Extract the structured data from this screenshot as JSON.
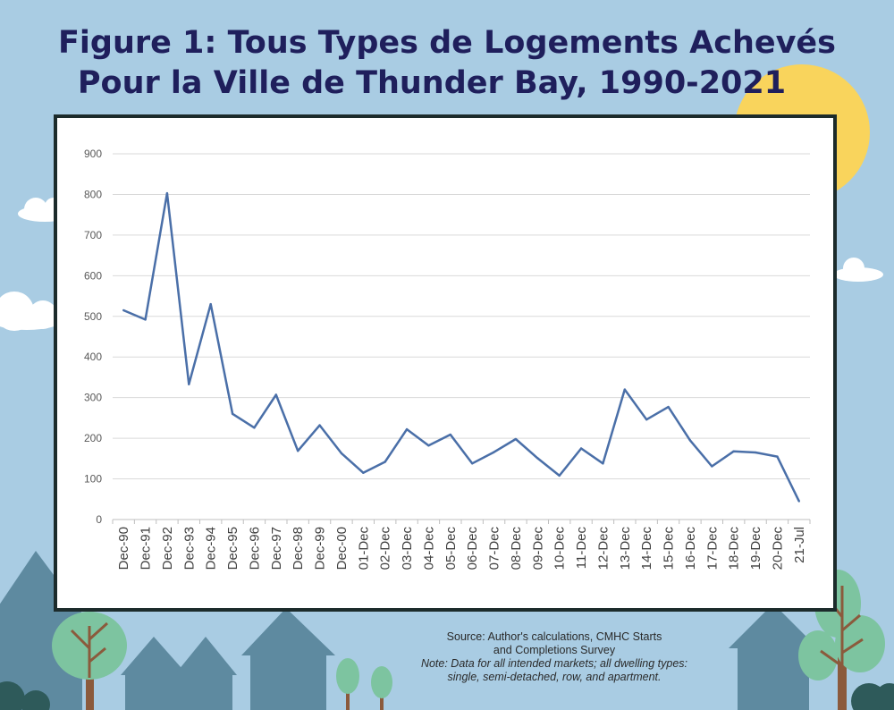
{
  "figure": {
    "title_line1": "Figure 1: Tous Types de Logements Achevés",
    "title_line2": "Pour la Ville de Thunder Bay, 1990-2021",
    "source_line1": "Source: Author's calculations, CMHC Starts",
    "source_line2": "and Completions Survey",
    "note_line1": "Note: Data for all intended markets; all dwelling types:",
    "note_line2": "single, semi-detached, row, and apartment."
  },
  "colors": {
    "background": "#a9cce3",
    "line": "#4a6fa8",
    "title": "#1f1f5c",
    "sun": "#f9d45c",
    "house": "#5e8aa0",
    "tree_leaf": "#7dc4a0",
    "tree_trunk": "#8b5a3c"
  },
  "chart_data": {
    "type": "line",
    "title": "",
    "xlabel": "",
    "ylabel": "",
    "ylim": [
      0,
      900
    ],
    "yticks": [
      0,
      100,
      200,
      300,
      400,
      500,
      600,
      700,
      800,
      900
    ],
    "grid": true,
    "categories": [
      "Dec-90",
      "Dec-91",
      "Dec-92",
      "Dec-93",
      "Dec-94",
      "Dec-95",
      "Dec-96",
      "Dec-97",
      "Dec-98",
      "Dec-99",
      "Dec-00",
      "01-Dec",
      "02-Dec",
      "03-Dec",
      "04-Dec",
      "05-Dec",
      "06-Dec",
      "07-Dec",
      "08-Dec",
      "09-Dec",
      "10-Dec",
      "11-Dec",
      "12-Dec",
      "13-Dec",
      "14-Dec",
      "15-Dec",
      "16-Dec",
      "17-Dec",
      "18-Dec",
      "19-Dec",
      "20-Dec",
      "21-Jul"
    ],
    "series": [
      {
        "values": [
          515,
          492,
          803,
          333,
          530,
          260,
          226,
          307,
          169,
          232,
          163,
          115,
          142,
          222,
          182,
          209,
          138,
          166,
          198,
          151,
          108,
          175,
          138,
          320,
          246,
          277,
          195,
          131,
          168,
          165,
          155,
          45
        ]
      }
    ]
  }
}
